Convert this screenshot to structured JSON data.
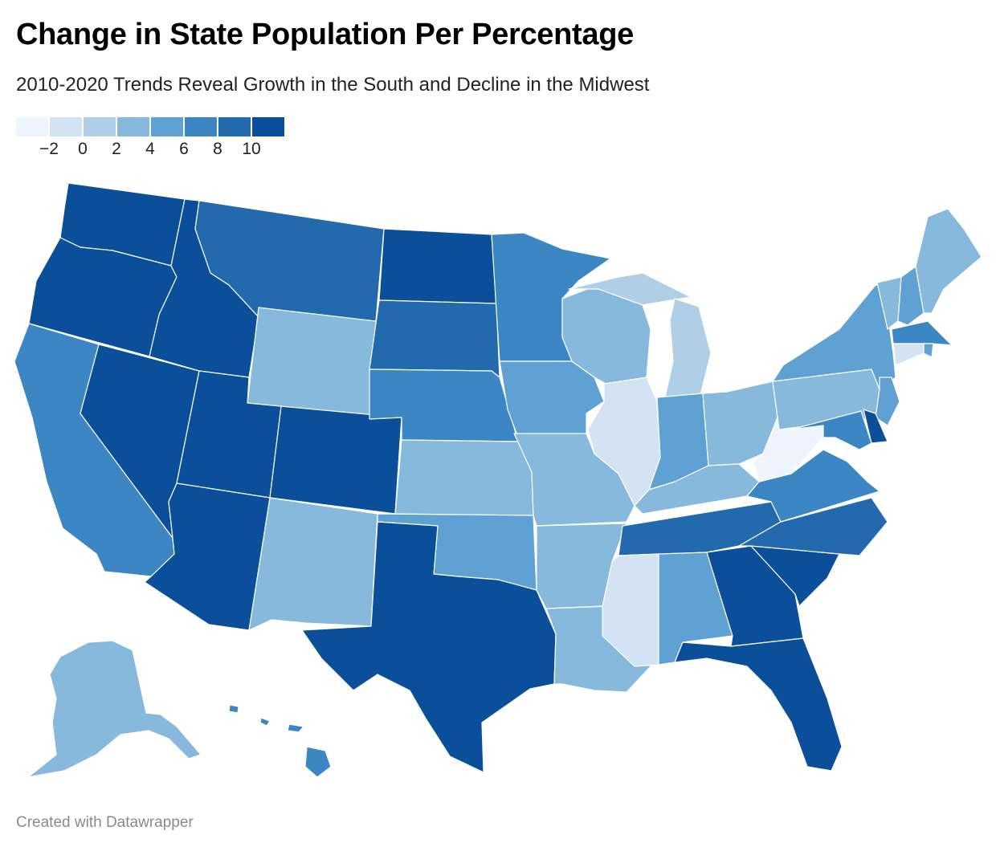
{
  "title": "Change in State Population Per Percentage",
  "subtitle": "2010-2020 Trends Reveal Growth in the South and Decline in the Midwest",
  "footer": "Created with Datawrapper",
  "legend": {
    "bin_colors": [
      "#eff5fe",
      "#d3e3f3",
      "#b0cfe6",
      "#86b9dc",
      "#5ea1d2",
      "#3c87c3",
      "#2369ad",
      "#0b4f9a"
    ],
    "tick_labels": [
      "−2",
      "0",
      "2",
      "4",
      "6",
      "8",
      "10"
    ]
  },
  "chart_data": {
    "type": "choropleth",
    "title": "Change in State Population Per Percentage",
    "subtitle": "2010-2020 Trends Reveal Growth in the South and Decline in the Midwest",
    "legend_breaks": [
      -2,
      0,
      2,
      4,
      6,
      8,
      10
    ],
    "states": [
      {
        "state": "Washington",
        "bin": 7
      },
      {
        "state": "Oregon",
        "bin": 7
      },
      {
        "state": "California",
        "bin": 5
      },
      {
        "state": "Nevada",
        "bin": 7
      },
      {
        "state": "Idaho",
        "bin": 7
      },
      {
        "state": "Montana",
        "bin": 6
      },
      {
        "state": "Wyoming",
        "bin": 3
      },
      {
        "state": "Utah",
        "bin": 7
      },
      {
        "state": "Arizona",
        "bin": 7
      },
      {
        "state": "Colorado",
        "bin": 7
      },
      {
        "state": "New Mexico",
        "bin": 3
      },
      {
        "state": "North Dakota",
        "bin": 7
      },
      {
        "state": "South Dakota",
        "bin": 6
      },
      {
        "state": "Nebraska",
        "bin": 5
      },
      {
        "state": "Kansas",
        "bin": 3
      },
      {
        "state": "Oklahoma",
        "bin": 4
      },
      {
        "state": "Texas",
        "bin": 7
      },
      {
        "state": "Minnesota",
        "bin": 5
      },
      {
        "state": "Iowa",
        "bin": 4
      },
      {
        "state": "Missouri",
        "bin": 3
      },
      {
        "state": "Arkansas",
        "bin": 3
      },
      {
        "state": "Louisiana",
        "bin": 3
      },
      {
        "state": "Wisconsin",
        "bin": 3
      },
      {
        "state": "Illinois",
        "bin": 1
      },
      {
        "state": "Michigan",
        "bin": 2
      },
      {
        "state": "Indiana",
        "bin": 4
      },
      {
        "state": "Ohio",
        "bin": 3
      },
      {
        "state": "Kentucky",
        "bin": 3
      },
      {
        "state": "Tennessee",
        "bin": 6
      },
      {
        "state": "Mississippi",
        "bin": 1
      },
      {
        "state": "Alabama",
        "bin": 4
      },
      {
        "state": "Georgia",
        "bin": 7
      },
      {
        "state": "Florida",
        "bin": 7
      },
      {
        "state": "South Carolina",
        "bin": 7
      },
      {
        "state": "North Carolina",
        "bin": 6
      },
      {
        "state": "Virginia",
        "bin": 5
      },
      {
        "state": "West Virginia",
        "bin": 0
      },
      {
        "state": "Pennsylvania",
        "bin": 3
      },
      {
        "state": "New York",
        "bin": 4
      },
      {
        "state": "Vermont",
        "bin": 3
      },
      {
        "state": "New Hampshire",
        "bin": 4
      },
      {
        "state": "Maine",
        "bin": 3
      },
      {
        "state": "Massachusetts",
        "bin": 5
      },
      {
        "state": "Rhode Island",
        "bin": 4
      },
      {
        "state": "Connecticut",
        "bin": 1
      },
      {
        "state": "New Jersey",
        "bin": 4
      },
      {
        "state": "Delaware",
        "bin": 7
      },
      {
        "state": "Maryland",
        "bin": 5
      },
      {
        "state": "Alaska",
        "bin": 3
      },
      {
        "state": "Hawaii",
        "bin": 5
      }
    ]
  }
}
